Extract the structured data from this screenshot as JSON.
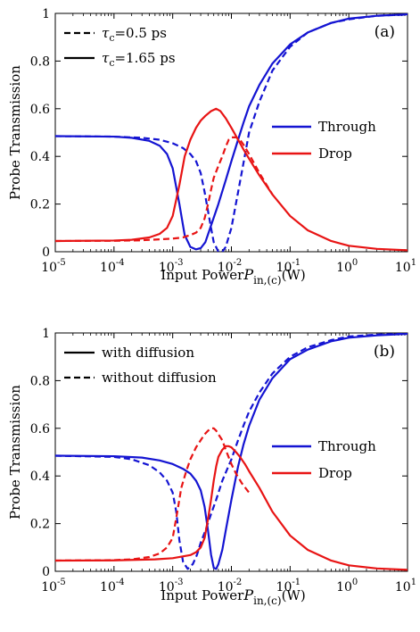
{
  "chart_data": [
    {
      "type": "line",
      "panel_label": "(a)",
      "xlabel_prefix": "Input Power",
      "xlabel_symbol": "P",
      "xlabel_subscript": "in,(c)",
      "xlabel_unit": "(W)",
      "ylabel": "Probe Transmission",
      "xscale": "log",
      "xlim": [
        1e-05,
        10
      ],
      "ylim": [
        0,
        1
      ],
      "xtick_exponents": [
        "-5",
        "-4",
        "-3",
        "-2",
        "-1",
        "0",
        "1"
      ],
      "yticks": [
        "0",
        "0.2",
        "0.4",
        "0.6",
        "0.8",
        "1"
      ],
      "style_legend": [
        {
          "symbol": "τ",
          "sub": "c",
          "text": "=0.5 ps",
          "dash": "dashed"
        },
        {
          "symbol": "τ",
          "sub": "c",
          "text": "=1.65 ps",
          "dash": "solid"
        }
      ],
      "color_legend": [
        {
          "label": "Through",
          "color": "#1414d2"
        },
        {
          "label": "Drop",
          "color": "#e81414"
        }
      ],
      "series": [
        {
          "color": "#1414d2",
          "dash": "solid",
          "x": [
            1e-05,
            0.0001,
            0.0002,
            0.0004,
            0.0006,
            0.0008,
            0.001,
            0.0013,
            0.0016,
            0.002,
            0.0025,
            0.003,
            0.0036,
            0.0045,
            0.006,
            0.008,
            0.01,
            0.013,
            0.016,
            0.02,
            0.03,
            0.05,
            0.1,
            0.2,
            0.5,
            1,
            3,
            10
          ],
          "y": [
            0.485,
            0.483,
            0.478,
            0.465,
            0.445,
            0.41,
            0.35,
            0.2,
            0.07,
            0.02,
            0.01,
            0.015,
            0.04,
            0.11,
            0.2,
            0.3,
            0.38,
            0.47,
            0.54,
            0.61,
            0.7,
            0.79,
            0.87,
            0.92,
            0.96,
            0.978,
            0.99,
            0.996
          ]
        },
        {
          "color": "#1414d2",
          "dash": "dashed",
          "x": [
            1e-05,
            0.0001,
            0.0003,
            0.0006,
            0.001,
            0.0015,
            0.002,
            0.0025,
            0.003,
            0.0035,
            0.004,
            0.0045,
            0.005,
            0.006,
            0.007,
            0.008,
            0.01,
            0.013,
            0.016,
            0.02,
            0.03,
            0.05,
            0.1,
            0.2,
            0.5,
            1,
            3,
            10
          ],
          "y": [
            0.485,
            0.483,
            0.478,
            0.47,
            0.455,
            0.435,
            0.41,
            0.38,
            0.33,
            0.25,
            0.17,
            0.1,
            0.04,
            0.0,
            0.0,
            0.02,
            0.1,
            0.25,
            0.37,
            0.5,
            0.63,
            0.76,
            0.86,
            0.92,
            0.96,
            0.975,
            0.99,
            0.995
          ]
        },
        {
          "color": "#e81414",
          "dash": "solid",
          "x": [
            1e-05,
            0.0001,
            0.0002,
            0.0004,
            0.0006,
            0.0008,
            0.001,
            0.0013,
            0.0016,
            0.002,
            0.0025,
            0.003,
            0.0036,
            0.0045,
            0.0055,
            0.0065,
            0.008,
            0.01,
            0.013,
            0.016,
            0.02,
            0.03,
            0.05,
            0.1,
            0.2,
            0.5,
            1,
            3,
            10
          ],
          "y": [
            0.045,
            0.047,
            0.05,
            0.06,
            0.075,
            0.1,
            0.15,
            0.28,
            0.4,
            0.47,
            0.52,
            0.55,
            0.57,
            0.59,
            0.6,
            0.59,
            0.56,
            0.52,
            0.47,
            0.43,
            0.39,
            0.32,
            0.24,
            0.15,
            0.09,
            0.045,
            0.025,
            0.012,
            0.006
          ]
        },
        {
          "color": "#e81414",
          "dash": "dashed",
          "x": [
            1e-05,
            0.0001,
            0.0003,
            0.0006,
            0.001,
            0.0015,
            0.002,
            0.0025,
            0.003,
            0.0035,
            0.004,
            0.0045,
            0.005,
            0.006,
            0.007,
            0.008,
            0.009,
            0.01,
            0.012,
            0.014,
            0.016,
            0.02,
            0.03,
            0.05
          ],
          "y": [
            0.045,
            0.046,
            0.048,
            0.052,
            0.055,
            0.06,
            0.07,
            0.08,
            0.1,
            0.14,
            0.2,
            0.26,
            0.31,
            0.36,
            0.4,
            0.44,
            0.47,
            0.48,
            0.48,
            0.47,
            0.45,
            0.41,
            0.33,
            0.24
          ]
        }
      ]
    },
    {
      "type": "line",
      "panel_label": "(b)",
      "xlabel_prefix": "Input Power",
      "xlabel_symbol": "P",
      "xlabel_subscript": "in,(c)",
      "xlabel_unit": "(W)",
      "ylabel": "Probe Transmission",
      "xscale": "log",
      "xlim": [
        1e-05,
        10
      ],
      "ylim": [
        0,
        1
      ],
      "xtick_exponents": [
        "-5",
        "-4",
        "-3",
        "-2",
        "-1",
        "0",
        "1"
      ],
      "yticks": [
        "0",
        "0.2",
        "0.4",
        "0.6",
        "0.8",
        "1"
      ],
      "style_legend": [
        {
          "symbol": "",
          "sub": "",
          "text": "with diffusion",
          "dash": "solid"
        },
        {
          "symbol": "",
          "sub": "",
          "text": "without diffusion",
          "dash": "dashed"
        }
      ],
      "color_legend": [
        {
          "label": "Through",
          "color": "#1414d2"
        },
        {
          "label": "Drop",
          "color": "#e81414"
        }
      ],
      "series": [
        {
          "color": "#1414d2",
          "dash": "solid",
          "x": [
            1e-05,
            0.0001,
            0.0003,
            0.0006,
            0.001,
            0.0015,
            0.002,
            0.0025,
            0.003,
            0.0035,
            0.004,
            0.0045,
            0.005,
            0.0055,
            0.006,
            0.007,
            0.008,
            0.01,
            0.013,
            0.016,
            0.02,
            0.03,
            0.05,
            0.1,
            0.2,
            0.5,
            1,
            3,
            10
          ],
          "y": [
            0.485,
            0.483,
            0.477,
            0.465,
            0.45,
            0.43,
            0.41,
            0.38,
            0.34,
            0.27,
            0.17,
            0.07,
            0.015,
            0.01,
            0.03,
            0.09,
            0.17,
            0.3,
            0.44,
            0.53,
            0.61,
            0.72,
            0.81,
            0.89,
            0.93,
            0.965,
            0.98,
            0.99,
            0.996
          ]
        },
        {
          "color": "#1414d2",
          "dash": "dashed",
          "x": [
            1e-05,
            0.0001,
            0.0002,
            0.0004,
            0.0006,
            0.0008,
            0.001,
            0.00115,
            0.0013,
            0.0015,
            0.0018,
            0.0022,
            0.0026,
            0.003,
            0.0036,
            0.0045,
            0.0055,
            0.007,
            0.01,
            0.013,
            0.016,
            0.02,
            0.03,
            0.05,
            0.1,
            0.2,
            0.5,
            1,
            3,
            10
          ],
          "y": [
            0.485,
            0.48,
            0.47,
            0.445,
            0.415,
            0.38,
            0.33,
            0.25,
            0.13,
            0.04,
            0.01,
            0.03,
            0.07,
            0.12,
            0.17,
            0.24,
            0.3,
            0.38,
            0.47,
            0.55,
            0.61,
            0.67,
            0.75,
            0.83,
            0.9,
            0.94,
            0.97,
            0.985,
            0.993,
            0.997
          ]
        },
        {
          "color": "#e81414",
          "dash": "solid",
          "x": [
            1e-05,
            0.0001,
            0.0005,
            0.001,
            0.002,
            0.0025,
            0.003,
            0.0035,
            0.004,
            0.0045,
            0.005,
            0.0055,
            0.006,
            0.007,
            0.008,
            0.009,
            0.01,
            0.012,
            0.014,
            0.017,
            0.02,
            0.03,
            0.05,
            0.1,
            0.2,
            0.5,
            1,
            3,
            10
          ],
          "y": [
            0.045,
            0.046,
            0.05,
            0.055,
            0.068,
            0.08,
            0.1,
            0.14,
            0.22,
            0.3,
            0.38,
            0.44,
            0.48,
            0.51,
            0.525,
            0.525,
            0.52,
            0.5,
            0.48,
            0.45,
            0.42,
            0.35,
            0.25,
            0.15,
            0.09,
            0.045,
            0.025,
            0.012,
            0.006
          ]
        },
        {
          "color": "#e81414",
          "dash": "dashed",
          "x": [
            1e-05,
            0.0001,
            0.0002,
            0.0004,
            0.0006,
            0.0008,
            0.001,
            0.0012,
            0.0014,
            0.0017,
            0.002,
            0.0025,
            0.003,
            0.0035,
            0.004,
            0.0045,
            0.005,
            0.0055,
            0.006,
            0.007,
            0.008,
            0.01,
            0.012,
            0.015,
            0.02
          ],
          "y": [
            0.045,
            0.047,
            0.05,
            0.06,
            0.075,
            0.1,
            0.14,
            0.25,
            0.35,
            0.42,
            0.47,
            0.52,
            0.55,
            0.575,
            0.59,
            0.6,
            0.6,
            0.59,
            0.575,
            0.55,
            0.51,
            0.45,
            0.41,
            0.37,
            0.33
          ]
        }
      ]
    }
  ]
}
